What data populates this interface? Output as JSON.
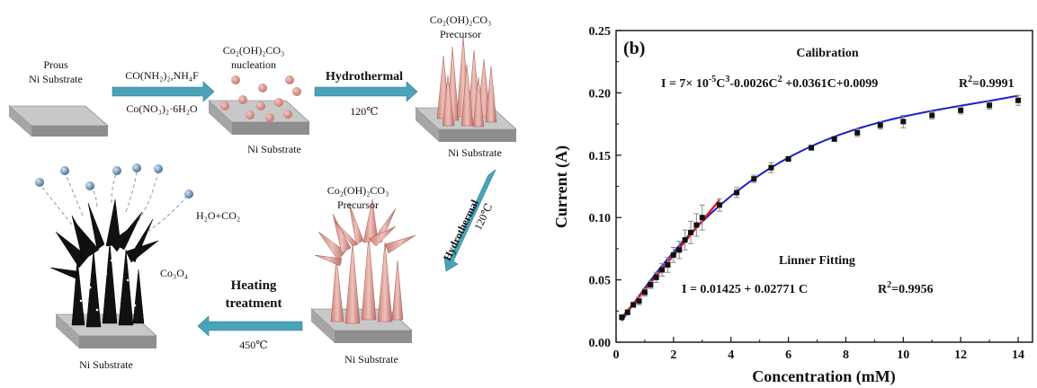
{
  "scheme": {
    "labels": {
      "prous": [
        "Prous",
        "Ni Substrate"
      ],
      "reagents_top": "CO(NH₂)₂,NH₄F",
      "reagents_bottom": "Co(NO₃)₂·6H₂O",
      "nucleation": [
        "Co₂(OH)₂CO₃",
        "nucleation"
      ],
      "hydrothermal_1": "Hydrothermal",
      "temp_120_a": "120℃",
      "precursor_1": [
        "Co₂(OH)₂CO₃",
        "Precursor"
      ],
      "ni_1": "Ni Substrate",
      "ni_2": "Ni Substrate",
      "hydrothermal_2": "Hydrothermal",
      "temp_120_b": "120℃",
      "precursor_2": [
        "Co₂(OH)₂CO₃",
        "Precursor"
      ],
      "ni_3": "Ni Substrate",
      "heating": [
        "Heating",
        "treatment"
      ],
      "temp_450": "450℃",
      "co3o4": "Co₃O₄",
      "gas": "H₂O+CO₂",
      "ni_4": "Ni Substrate"
    },
    "colors": {
      "arrow": "#4aa3b8",
      "precursor": "#d89a92",
      "product": "#111111",
      "substrate": "#a8a8a8",
      "bubble": "#7a9ec0"
    }
  },
  "chart_data": {
    "type": "scatter",
    "panel_label": "(b)",
    "xlabel": "Concentration (mM)",
    "ylabel": "Current (A)",
    "xlim": [
      0,
      14.5
    ],
    "ylim": [
      0,
      0.25
    ],
    "xticks": [
      0,
      2,
      4,
      6,
      8,
      10,
      12,
      14
    ],
    "yticks": [
      0.0,
      0.05,
      0.1,
      0.15,
      0.2,
      0.25
    ],
    "ytick_labels": [
      "0.00",
      "0.05",
      "0.10",
      "0.15",
      "0.20",
      "0.25"
    ],
    "series": [
      {
        "name": "",
        "marker": "square",
        "color": "#111111",
        "x": [
          0.2,
          0.4,
          0.6,
          0.8,
          1.0,
          1.2,
          1.4,
          1.6,
          1.8,
          2.0,
          2.2,
          2.4,
          2.6,
          2.8,
          3.0,
          3.6,
          4.2,
          4.8,
          5.4,
          6.0,
          6.8,
          7.6,
          8.4,
          9.2,
          10.0,
          11.0,
          12.0,
          13.0,
          14.0
        ],
        "y": [
          0.02,
          0.024,
          0.03,
          0.033,
          0.04,
          0.046,
          0.052,
          0.058,
          0.062,
          0.07,
          0.074,
          0.082,
          0.088,
          0.094,
          0.1,
          0.11,
          0.12,
          0.131,
          0.14,
          0.147,
          0.156,
          0.163,
          0.168,
          0.174,
          0.177,
          0.182,
          0.186,
          0.19,
          0.194
        ],
        "err": [
          0.002,
          0.002,
          0.002,
          0.003,
          0.003,
          0.003,
          0.004,
          0.005,
          0.006,
          0.006,
          0.007,
          0.008,
          0.009,
          0.009,
          0.01,
          0.005,
          0.004,
          0.003,
          0.004,
          0.002,
          0.002,
          0.002,
          0.003,
          0.003,
          0.005,
          0.003,
          0.003,
          0.003,
          0.004
        ]
      }
    ],
    "fits": [
      {
        "name": "Calibration",
        "color": "#1c1ccc",
        "coeffs": [
          0.0099,
          0.0361,
          -0.0026,
          7e-05
        ],
        "xrange": [
          0.2,
          14.0
        ]
      },
      {
        "name": "Linner Fitting",
        "color": "#dd1c1c",
        "coeffs": [
          0.01425,
          0.02771
        ],
        "xrange": [
          0.2,
          3.6
        ]
      }
    ],
    "annotations": {
      "calibration_title": "Calibration",
      "calibration_eq": "I = 7× 10",
      "calibration_exp1": "-5",
      "calibration_eq2": "C",
      "calibration_exp2": "3",
      "calibration_eq3": "-0.0026C",
      "calibration_exp3": "2",
      "calibration_eq4": " +0.0361C+0.0099",
      "calibration_r2_pre": "R",
      "calibration_r2_exp": "2",
      "calibration_r2_val": "=0.9991",
      "linear_title": "Linner Fitting",
      "linear_eq": "I = 0.01425 + 0.02771 C",
      "linear_r2_pre": "R",
      "linear_r2_exp": "2",
      "linear_r2_val": "=0.9956"
    },
    "grid": false
  }
}
